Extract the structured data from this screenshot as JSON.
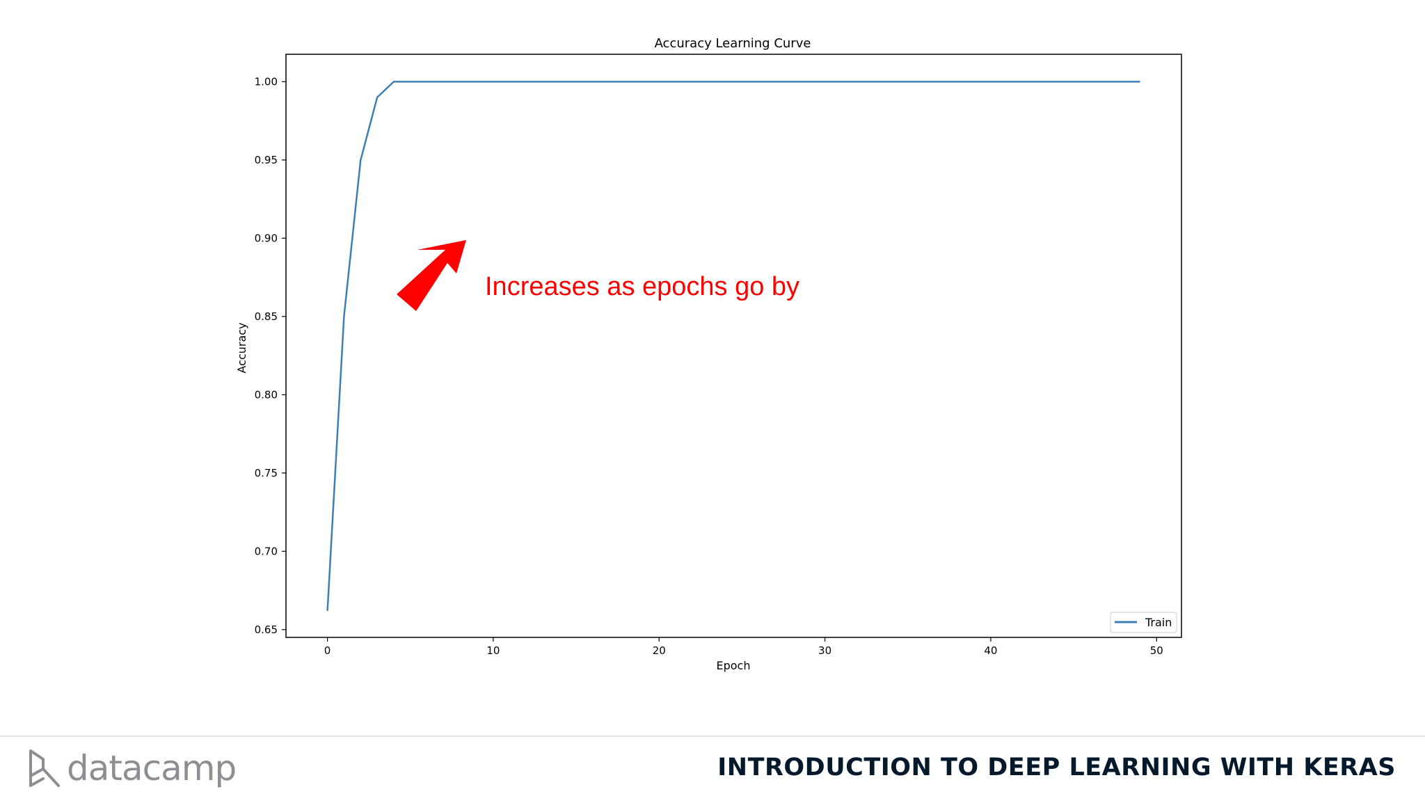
{
  "chart_data": {
    "type": "line",
    "title": "Accuracy Learning Curve",
    "xlabel": "Epoch",
    "ylabel": "Accuracy",
    "xlim": [
      -2.5,
      51.5
    ],
    "ylim": [
      0.645,
      1.0175
    ],
    "xticks": [
      0,
      10,
      20,
      30,
      40,
      50
    ],
    "yticks": [
      0.65,
      0.7,
      0.75,
      0.8,
      0.85,
      0.9,
      0.95,
      1.0
    ],
    "xtick_labels": [
      "0",
      "10",
      "20",
      "30",
      "40",
      "50"
    ],
    "ytick_labels": [
      "0.65",
      "0.70",
      "0.75",
      "0.80",
      "0.85",
      "0.90",
      "0.95",
      "1.00"
    ],
    "grid": false,
    "legend": "bottom-right",
    "series": [
      {
        "name": "Train",
        "color": "#3b7fb6",
        "x": [
          0,
          1,
          2,
          3,
          4,
          5,
          6,
          7,
          8,
          9,
          10,
          11,
          12,
          13,
          14,
          15,
          16,
          17,
          18,
          19,
          20,
          21,
          22,
          23,
          24,
          25,
          26,
          27,
          28,
          29,
          30,
          31,
          32,
          33,
          34,
          35,
          36,
          37,
          38,
          39,
          40,
          41,
          42,
          43,
          44,
          45,
          46,
          47,
          48,
          49
        ],
        "values": [
          0.662,
          0.85,
          0.95,
          0.99,
          1.0,
          1.0,
          1.0,
          1.0,
          1.0,
          1.0,
          1.0,
          1.0,
          1.0,
          1.0,
          1.0,
          1.0,
          1.0,
          1.0,
          1.0,
          1.0,
          1.0,
          1.0,
          1.0,
          1.0,
          1.0,
          1.0,
          1.0,
          1.0,
          1.0,
          1.0,
          1.0,
          1.0,
          1.0,
          1.0,
          1.0,
          1.0,
          1.0,
          1.0,
          1.0,
          1.0,
          1.0,
          1.0,
          1.0,
          1.0,
          1.0,
          1.0,
          1.0,
          1.0,
          1.0,
          1.0
        ]
      }
    ],
    "annotation": {
      "text": "Increases as epochs go by",
      "color": "#ff0000",
      "arrow_icon": "up-right-arrow-icon"
    }
  },
  "footer": {
    "logo_text": "datacamp",
    "logo_icon": "datacamp-logo-icon",
    "course_title": "INTRODUCTION TO DEEP LEARNING WITH KERAS"
  }
}
